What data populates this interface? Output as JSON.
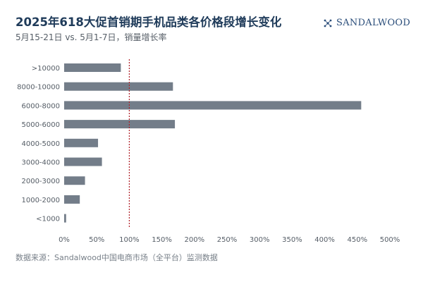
{
  "header": {
    "title": "2025年618大促首销期手机品类各价格段增长变化",
    "subtitle": "5月15-21日 vs. 5月1-7日，销量增长率"
  },
  "logo": {
    "text": "SANDALWOOD"
  },
  "footer": {
    "source": "数据来源：Sandalwood中国电商市场（全平台）监测数据"
  },
  "colors": {
    "bar": "#737d89",
    "reference_line": "#b02028",
    "title": "#1f3b5a"
  },
  "chart_data": {
    "type": "bar",
    "orientation": "horizontal",
    "categories": [
      ">10000",
      "8000-10000",
      "6000-8000",
      "5000-6000",
      "4000-5000",
      "3000-4000",
      "2000-3000",
      "1000-2000",
      "<1000"
    ],
    "values": [
      87,
      167,
      456,
      170,
      52,
      58,
      32,
      24,
      3
    ],
    "unit": "%",
    "xlim": [
      0,
      500
    ],
    "xticks": [
      "0%",
      "50%",
      "100%",
      "150%",
      "200%",
      "250%",
      "300%",
      "350%",
      "400%",
      "450%",
      "500%"
    ],
    "reference_line": {
      "value": 100,
      "style": "dotted"
    },
    "grid": false,
    "legend": "none"
  }
}
